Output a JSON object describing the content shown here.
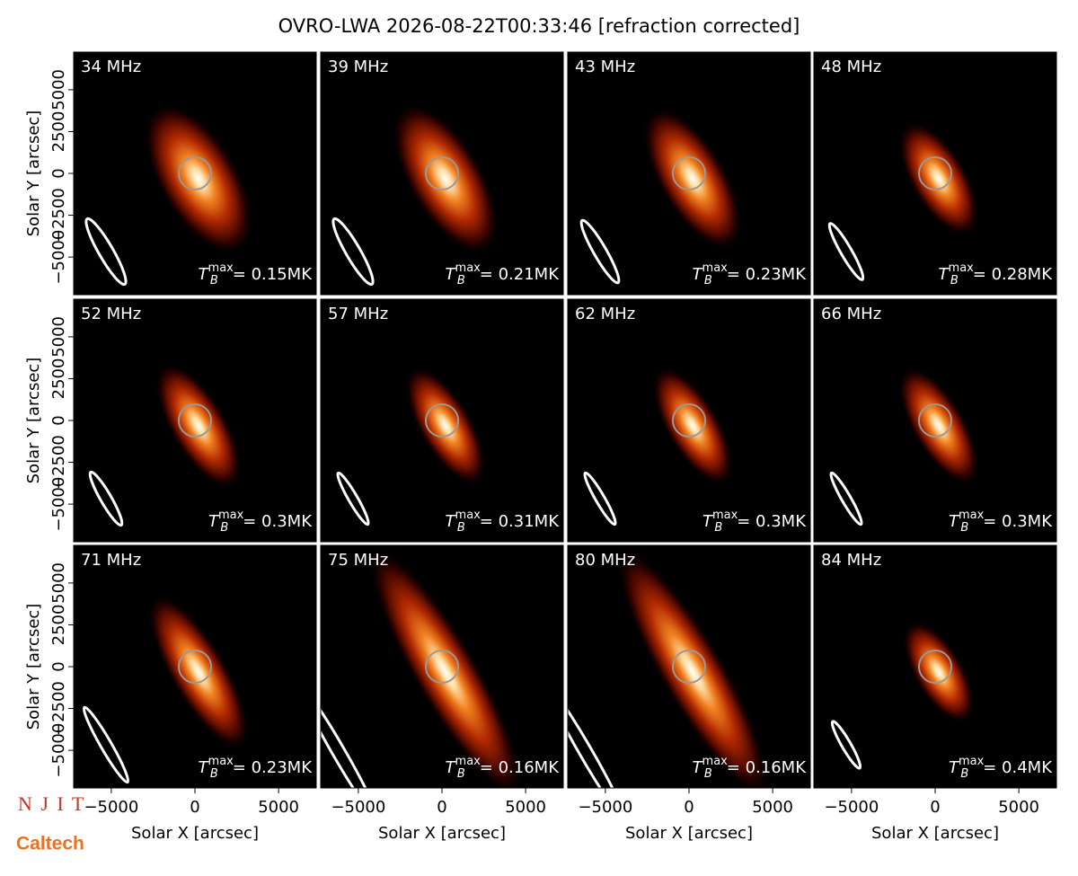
{
  "title": "OVRO-LWA 2026-08-22T00:33:46 [refraction corrected]",
  "logos": [
    "N J I T",
    "Caltech"
  ],
  "chart_data": [
    {
      "type": "image",
      "label": "34 MHz",
      "tb_symbol": "T",
      "tb_sub": "B",
      "tb_sup": "max",
      "tb_text": "= 0.15MK",
      "xlim": [
        -7250,
        7250
      ],
      "ylim": [
        -7250,
        7250
      ],
      "ylabel": "Solar Y [arcsec]",
      "yticks": [
        {
          "value": -5000,
          "label": "−5000"
        },
        {
          "value": -2500,
          "label": "−2500"
        },
        0,
        2500,
        5000
      ]
    },
    {
      "type": "image",
      "label": "39 MHz",
      "tb_symbol": "T",
      "tb_sub": "B",
      "tb_sup": "max",
      "tb_text": "= 0.21MK",
      "xlim": [
        -7250,
        7250
      ],
      "ylim": [
        -7250,
        7250
      ]
    },
    {
      "type": "image",
      "label": "43 MHz",
      "tb_symbol": "T",
      "tb_sub": "B",
      "tb_sup": "max",
      "tb_text": "= 0.23MK",
      "xlim": [
        -7250,
        7250
      ],
      "ylim": [
        -7250,
        7250
      ]
    },
    {
      "type": "image",
      "label": "48 MHz",
      "tb_symbol": "T",
      "tb_sub": "B",
      "tb_sup": "max",
      "tb_text": "= 0.28MK",
      "xlim": [
        -7250,
        7250
      ],
      "ylim": [
        -7250,
        7250
      ]
    },
    {
      "type": "image",
      "label": "52 MHz",
      "tb_symbol": "T",
      "tb_sub": "B",
      "tb_sup": "max",
      "tb_text": "= 0.3MK",
      "xlim": [
        -7250,
        7250
      ],
      "ylim": [
        -7250,
        7250
      ],
      "ylabel": "Solar Y [arcsec]",
      "yticks": [
        {
          "value": -5000,
          "label": "−5000"
        },
        {
          "value": -2500,
          "label": "−2500"
        },
        0,
        2500,
        5000
      ]
    },
    {
      "type": "image",
      "label": "57 MHz",
      "tb_symbol": "T",
      "tb_sub": "B",
      "tb_sup": "max",
      "tb_text": "= 0.31MK",
      "xlim": [
        -7250,
        7250
      ],
      "ylim": [
        -7250,
        7250
      ]
    },
    {
      "type": "image",
      "label": "62 MHz",
      "tb_symbol": "T",
      "tb_sub": "B",
      "tb_sup": "max",
      "tb_text": "= 0.3MK",
      "xlim": [
        -7250,
        7250
      ],
      "ylim": [
        -7250,
        7250
      ]
    },
    {
      "type": "image",
      "label": "66 MHz",
      "tb_symbol": "T",
      "tb_sub": "B",
      "tb_sup": "max",
      "tb_text": "= 0.3MK",
      "xlim": [
        -7250,
        7250
      ],
      "ylim": [
        -7250,
        7250
      ]
    },
    {
      "type": "image",
      "label": "71 MHz",
      "tb_symbol": "T",
      "tb_sub": "B",
      "tb_sup": "max",
      "tb_text": "= 0.23MK",
      "xlim": [
        -7250,
        7250
      ],
      "ylim": [
        -7250,
        7250
      ],
      "ylabel": "Solar Y [arcsec]",
      "yticks": [
        {
          "value": -5000,
          "label": "−5000"
        },
        {
          "value": -2500,
          "label": "−2500"
        },
        0,
        2500,
        5000
      ],
      "xlabel": "Solar X [arcsec]",
      "xticks": [
        {
          "value": -5000,
          "label": "−5000"
        },
        0,
        5000
      ]
    },
    {
      "type": "image",
      "label": "75 MHz",
      "tb_symbol": "T",
      "tb_sub": "B",
      "tb_sup": "max",
      "tb_text": "= 0.16MK",
      "xlim": [
        -7250,
        7250
      ],
      "ylim": [
        -7250,
        7250
      ],
      "xlabel": "Solar X [arcsec]",
      "xticks": [
        {
          "value": -5000,
          "label": "−5000"
        },
        0,
        5000
      ]
    },
    {
      "type": "image",
      "label": "80 MHz",
      "tb_symbol": "T",
      "tb_sub": "B",
      "tb_sup": "max",
      "tb_text": "= 0.16MK",
      "xlim": [
        -7250,
        7250
      ],
      "ylim": [
        -7250,
        7250
      ],
      "xlabel": "Solar X [arcsec]",
      "xticks": [
        {
          "value": -5000,
          "label": "−5000"
        },
        0,
        5000
      ]
    },
    {
      "type": "image",
      "label": "84 MHz",
      "tb_symbol": "T",
      "tb_sub": "B",
      "tb_sup": "max",
      "tb_text": "= 0.4MK",
      "xlim": [
        -7250,
        7250
      ],
      "ylim": [
        -7250,
        7250
      ],
      "xlabel": "Solar X [arcsec]",
      "xticks": [
        {
          "value": -5000,
          "label": "−5000"
        },
        0,
        5000
      ]
    }
  ]
}
